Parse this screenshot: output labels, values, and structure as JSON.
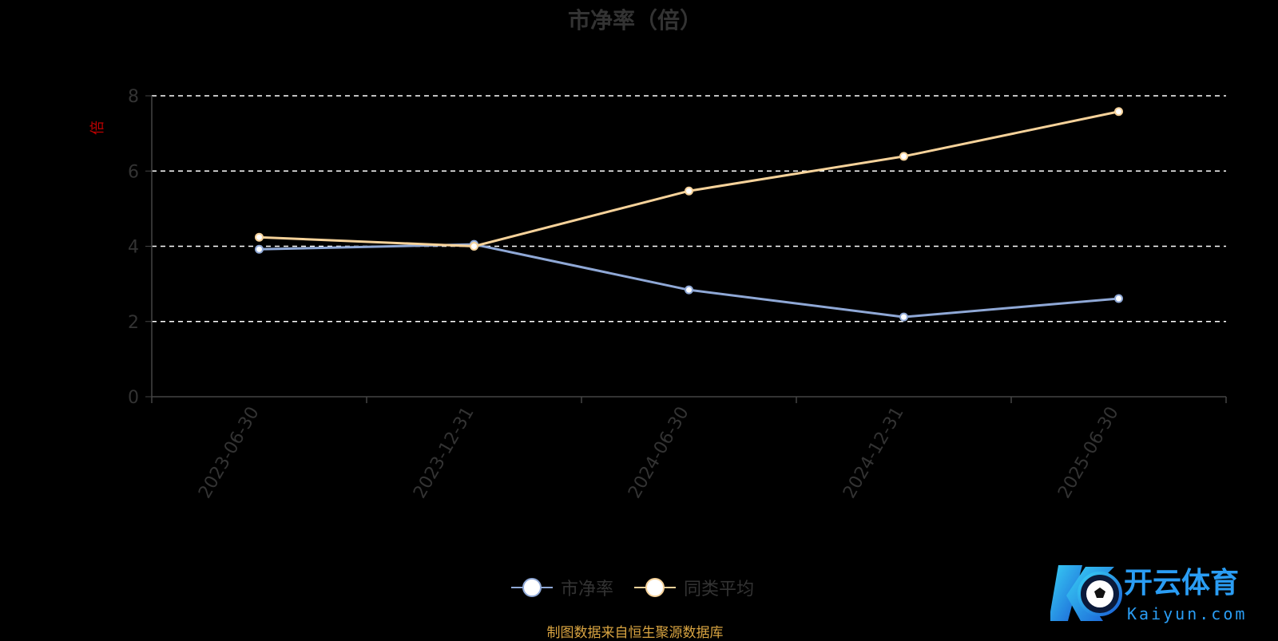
{
  "chart_data": {
    "type": "line",
    "title": "市净率（倍）",
    "ylabel": "倍",
    "xlabel": "",
    "ylim": [
      0,
      8
    ],
    "yticks": [
      0,
      2,
      4,
      6,
      8
    ],
    "grid": true,
    "legend_position": "bottom",
    "categories": [
      "2023-06-30",
      "2023-12-31",
      "2024-06-30",
      "2024-12-31",
      "2025-06-30"
    ],
    "series": [
      {
        "name": "市净率",
        "color": "#8fa8d6",
        "values": [
          3.92,
          4.05,
          2.84,
          2.12,
          2.61
        ]
      },
      {
        "name": "同类平均",
        "color": "#f6d29a",
        "values": [
          4.24,
          4.0,
          5.47,
          6.39,
          7.58
        ]
      }
    ]
  },
  "footer": {
    "source": "制图数据来自恒生聚源数据库"
  },
  "watermark": {
    "brand_cn": "开云体育",
    "brand_en": "Kaiyun.com"
  }
}
